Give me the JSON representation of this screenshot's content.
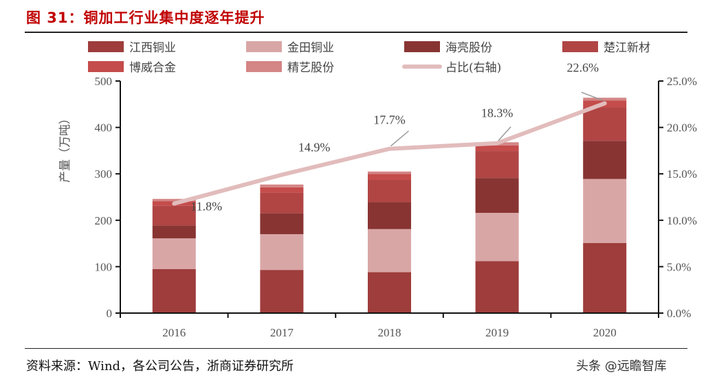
{
  "title": "图 31：铜加工行业集中度逐年提升",
  "source": "资料来源：Wind，各公司公告，浙商证券研究所",
  "watermark": "头条 @远瞻智库",
  "chart_data": {
    "type": "bar",
    "stacked": true,
    "title": "",
    "categories": [
      "2016",
      "2017",
      "2018",
      "2019",
      "2020"
    ],
    "ylabel": "产量（万吨）",
    "ylim": [
      0,
      500
    ],
    "yticks": [
      "0",
      "100",
      "200",
      "300",
      "400",
      "500"
    ],
    "y2lim": [
      0,
      25
    ],
    "y2ticks": [
      "0.0%",
      "5.0%",
      "10.0%",
      "15.0%",
      "20.0%",
      "25.0%"
    ],
    "legend_position": "top",
    "grid": false,
    "series": [
      {
        "name": "江西铜业",
        "color": "#9e3d3b",
        "values": [
          95,
          93,
          88,
          112,
          151
        ]
      },
      {
        "name": "金田铜业",
        "color": "#d9a6a6",
        "values": [
          66,
          77,
          93,
          104,
          138
        ]
      },
      {
        "name": "海亮股份",
        "color": "#883432",
        "values": [
          28,
          45,
          58,
          75,
          82
        ]
      },
      {
        "name": "楚江新材",
        "color": "#b04544",
        "values": [
          42,
          44,
          48,
          58,
          72
        ]
      },
      {
        "name": "博威合金",
        "color": "#c44c4b",
        "values": [
          10,
          12,
          13,
          12,
          15
        ]
      },
      {
        "name": "精艺股份",
        "color": "#d48585",
        "values": [
          5,
          6,
          5,
          7,
          6
        ]
      }
    ],
    "line_series": {
      "name": "占比(右轴)",
      "color": "#e2bcbc",
      "axis": "right",
      "values": [
        11.8,
        14.9,
        17.7,
        18.3,
        22.6
      ],
      "labels": [
        "11.8%",
        "14.9%",
        "17.7%",
        "18.3%",
        "22.6%"
      ]
    }
  }
}
